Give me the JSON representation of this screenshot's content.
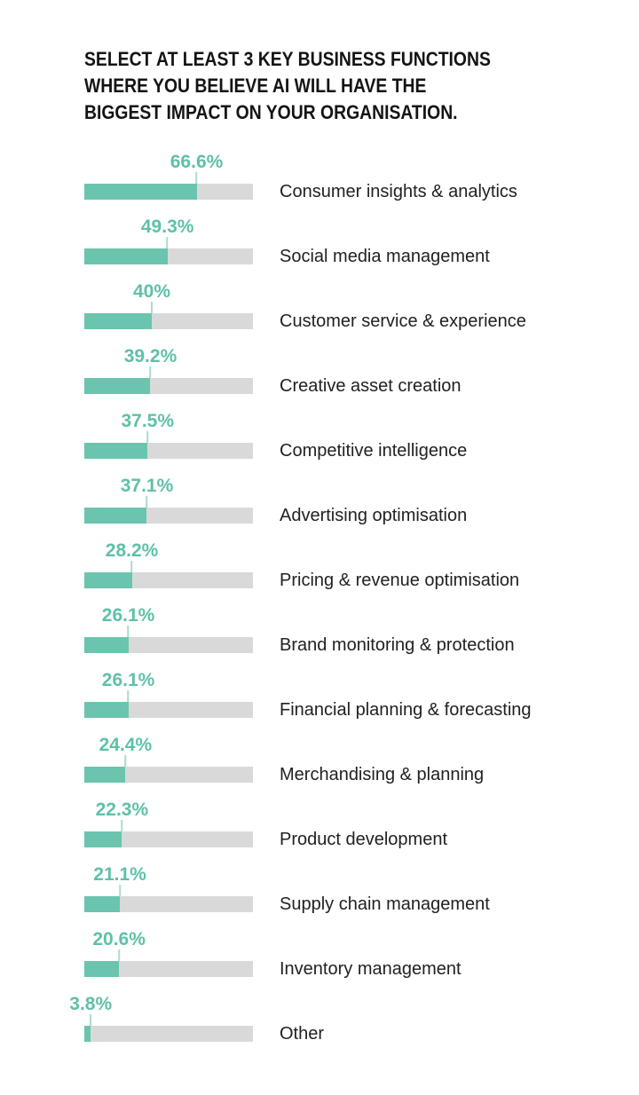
{
  "title": "SELECT AT LEAST 3 KEY BUSINESS FUNCTIONS WHERE YOU BELIEVE AI WILL HAVE THE BIGGEST IMPACT ON YOUR ORGANISATION.",
  "title_lines": [
    "SELECT AT LEAST 3 KEY BUSINESS FUNCTIONS",
    "WHERE YOU BELIEVE AI WILL HAVE THE",
    "BIGGEST IMPACT ON YOUR ORGANISATION."
  ],
  "colors": {
    "background": "#ffffff",
    "title_text": "#141414",
    "category_text": "#212121",
    "bar_fill": "#6ac4ae",
    "bar_track": "#d9d9d9",
    "value_text": "#5fc0a9",
    "tick_line": "#aadcd1"
  },
  "chart_data": {
    "type": "bar",
    "orientation": "horizontal",
    "title": "SELECT AT LEAST 3 KEY BUSINESS FUNCTIONS WHERE YOU BELIEVE AI WILL HAVE THE BIGGEST IMPACT ON YOUR ORGANISATION.",
    "unit": "%",
    "xlim": [
      0,
      100
    ],
    "grid": false,
    "legend": false,
    "value_label_position": "above-bar-end",
    "category_label_position": "right-of-bar",
    "categories": [
      "Consumer insights & analytics",
      "Social media management",
      "Customer service & experience",
      "Creative asset creation",
      "Competitive intelligence",
      "Advertising optimisation",
      "Pricing & revenue optimisation",
      "Brand monitoring & protection",
      "Financial planning & forecasting",
      "Merchandising & planning",
      "Product development",
      "Supply chain management",
      "Inventory management",
      "Other"
    ],
    "values": [
      66.6,
      49.3,
      40,
      39.2,
      37.5,
      37.1,
      28.2,
      26.1,
      26.1,
      24.4,
      22.3,
      21.1,
      20.6,
      3.8
    ],
    "value_labels": [
      "66.6%",
      "49.3%",
      "40%",
      "39.2%",
      "37.5%",
      "37.1%",
      "28.2%",
      "26.1%",
      "26.1%",
      "24.4%",
      "22.3%",
      "21.1%",
      "20.6%",
      "3.8%"
    ]
  }
}
